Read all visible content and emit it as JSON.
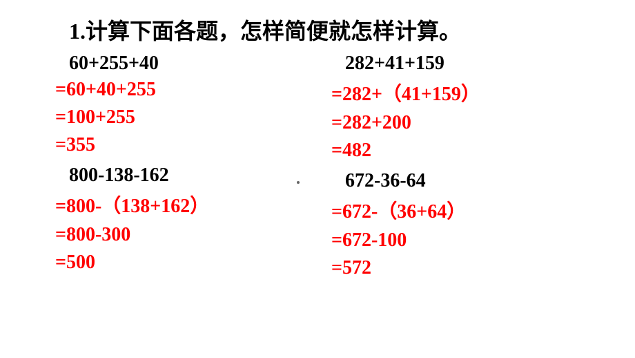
{
  "title": "1.计算下面各题，怎样简便就怎样计算。",
  "columns": [
    {
      "problems": [
        {
          "expression": "60+255+40",
          "steps": [
            "=60+40+255",
            "=100+255",
            "=355"
          ]
        },
        {
          "expression": "800-138-162",
          "steps": [
            "=800-（138+162）",
            "=800-300",
            "=500"
          ]
        }
      ]
    },
    {
      "problems": [
        {
          "expression": "282+41+159",
          "steps": [
            "=282+（41+159）",
            "=282+200",
            "=482"
          ]
        },
        {
          "expression": "672-36-64",
          "steps": [
            "=672-（36+64）",
            "=672-100",
            "=572"
          ]
        }
      ]
    }
  ],
  "colors": {
    "title": "#000000",
    "problem": "#000000",
    "step": "#ff0000",
    "background": "#ffffff"
  },
  "fontsize": {
    "title": 32,
    "text": 28
  }
}
